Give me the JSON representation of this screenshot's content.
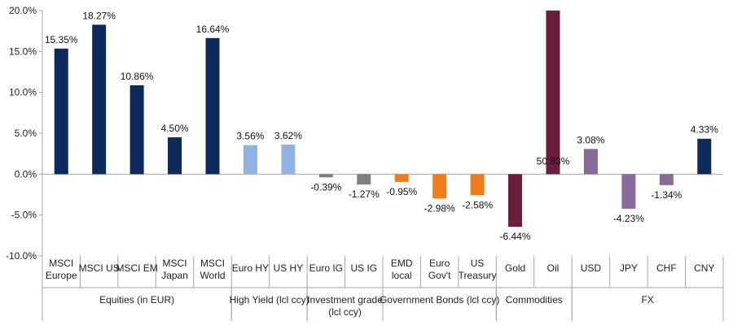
{
  "chart_data": {
    "type": "bar",
    "title": "",
    "xlabel": "",
    "ylabel": "",
    "ylim": [
      -10,
      20
    ],
    "yticks": [
      20,
      15,
      10,
      5,
      0,
      -5,
      -10
    ],
    "ytick_labels": [
      "20.0%",
      "15.0%",
      "10.0%",
      "5.0%",
      "0.0%",
      "-5.0%",
      "-10.0%"
    ],
    "grid": false,
    "categories": [
      {
        "lines": [
          "MSCI",
          "Europe"
        ],
        "value": 15.35,
        "label": "15.35%",
        "color": "#0d2a5c"
      },
      {
        "lines": [
          "MSCI US"
        ],
        "value": 18.27,
        "label": "18.27%",
        "color": "#0d2a5c"
      },
      {
        "lines": [
          "MSCI EM"
        ],
        "value": 10.86,
        "label": "10.86%",
        "color": "#0d2a5c"
      },
      {
        "lines": [
          "MSCI",
          "Japan"
        ],
        "value": 4.5,
        "label": "4.50%",
        "color": "#0d2a5c"
      },
      {
        "lines": [
          "MSCI",
          "World"
        ],
        "value": 16.64,
        "label": "16.64%",
        "color": "#0d2a5c"
      },
      {
        "lines": [
          "Euro HY"
        ],
        "value": 3.56,
        "label": "3.56%",
        "color": "#8fb4e3"
      },
      {
        "lines": [
          "US HY"
        ],
        "value": 3.62,
        "label": "3.62%",
        "color": "#8fb4e3"
      },
      {
        "lines": [
          "Euro IG"
        ],
        "value": -0.39,
        "label": "-0.39%",
        "color": "#7f7f7f"
      },
      {
        "lines": [
          "US IG"
        ],
        "value": -1.27,
        "label": "-1.27%",
        "color": "#7f7f7f"
      },
      {
        "lines": [
          "EMD",
          "local"
        ],
        "value": -0.95,
        "label": "-0.95%",
        "color": "#f07d19"
      },
      {
        "lines": [
          "Euro",
          "Gov't"
        ],
        "value": -2.98,
        "label": "-2.98%",
        "color": "#f07d19"
      },
      {
        "lines": [
          "US",
          "Treasury"
        ],
        "value": -2.58,
        "label": "-2.58%",
        "color": "#f07d19"
      },
      {
        "lines": [
          "Gold"
        ],
        "value": -6.44,
        "label": "-6.44%",
        "color": "#6b1d3e"
      },
      {
        "lines": [
          "Oil"
        ],
        "value": 50.83,
        "label": "50.83%",
        "color": "#6b1d3e"
      },
      {
        "lines": [
          "USD"
        ],
        "value": 3.08,
        "label": "3.08%",
        "color": "#8a6a9a"
      },
      {
        "lines": [
          "JPY"
        ],
        "value": -4.23,
        "label": "-4.23%",
        "color": "#8a6a9a"
      },
      {
        "lines": [
          "CHF"
        ],
        "value": -1.34,
        "label": "-1.34%",
        "color": "#8a6a9a"
      },
      {
        "lines": [
          "CNY"
        ],
        "value": 4.33,
        "label": "4.33%",
        "color": "#0d2a5c"
      }
    ],
    "groups": [
      {
        "lines": [
          "Equities (in EUR)"
        ],
        "start": 0,
        "count": 5
      },
      {
        "lines": [
          "High Yield (lcl ccy)"
        ],
        "start": 5,
        "count": 2
      },
      {
        "lines": [
          "Investment grade",
          "(lcl ccy)"
        ],
        "start": 7,
        "count": 2
      },
      {
        "lines": [
          "Government Bonds (lcl ccy)"
        ],
        "start": 9,
        "count": 3
      },
      {
        "lines": [
          "Commodities"
        ],
        "start": 12,
        "count": 2
      },
      {
        "lines": [
          "FX"
        ],
        "start": 14,
        "count": 4
      }
    ]
  }
}
